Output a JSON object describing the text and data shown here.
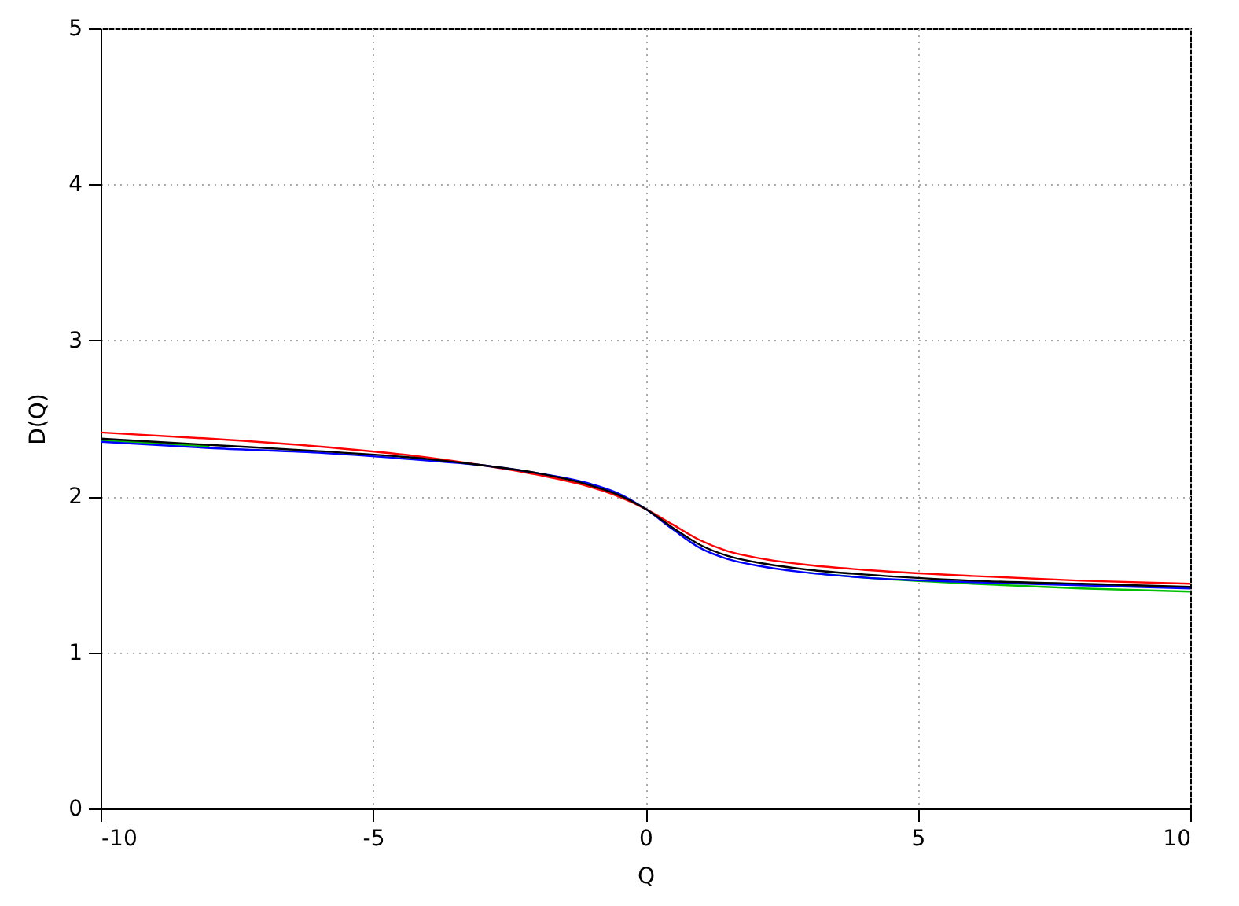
{
  "chart_data": {
    "type": "line",
    "xlabel": "Q",
    "ylabel": "D(Q)",
    "xlim": [
      -10,
      10
    ],
    "ylim": [
      0,
      5
    ],
    "xticks": [
      -10,
      -5,
      0,
      5,
      10
    ],
    "yticks": [
      0,
      1,
      2,
      3,
      4,
      5
    ],
    "grid": true,
    "x": [
      -10,
      -8,
      -6,
      -4,
      -3,
      -2,
      -1,
      -0.5,
      0,
      0.5,
      1,
      1.5,
      2,
      3,
      4,
      6,
      8,
      10
    ],
    "series": [
      {
        "color": "#ff0000",
        "values": [
          2.41,
          2.37,
          2.32,
          2.25,
          2.2,
          2.14,
          2.06,
          2.0,
          1.92,
          1.82,
          1.72,
          1.65,
          1.61,
          1.56,
          1.53,
          1.49,
          1.46,
          1.44
        ]
      },
      {
        "color": "#00c000",
        "values": [
          2.36,
          2.32,
          null,
          null,
          null,
          null,
          null,
          null,
          null,
          null,
          null,
          null,
          null,
          1.51,
          1.48,
          1.44,
          1.41,
          1.39
        ]
      },
      {
        "color": "#0000ff",
        "values": [
          2.35,
          2.31,
          2.28,
          2.23,
          2.2,
          2.15,
          2.08,
          2.02,
          1.92,
          1.79,
          1.67,
          1.6,
          1.56,
          1.51,
          1.48,
          1.45,
          1.43,
          1.41
        ]
      },
      {
        "color": "#000000",
        "values": [
          2.37,
          2.33,
          2.29,
          2.24,
          2.2,
          2.15,
          2.07,
          2.01,
          1.92,
          1.8,
          1.69,
          1.62,
          1.58,
          1.53,
          1.5,
          1.46,
          1.44,
          1.42
        ]
      }
    ]
  }
}
